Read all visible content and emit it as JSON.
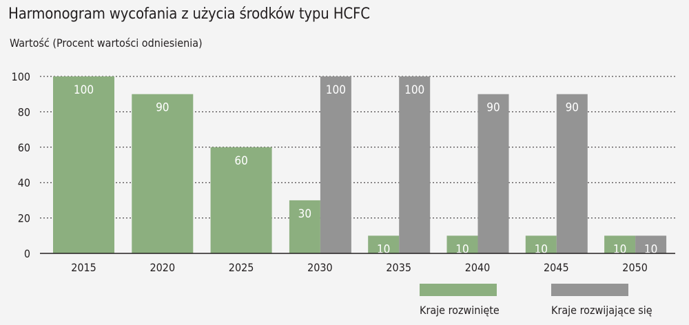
{
  "title": "Harmonogram wycofania z użycia środków typu HCFC",
  "subtitle": "Wartość (Procent wartości odniesienia)",
  "colors": {
    "developed": "#8caf7f",
    "developing": "#949494"
  },
  "chart_data": {
    "type": "bar",
    "categories": [
      "2015",
      "2020",
      "2025",
      "2030",
      "2035",
      "2040",
      "2045",
      "2050"
    ],
    "series": [
      {
        "name": "Kraje rozwinięte",
        "values": [
          100,
          90,
          60,
          30,
          10,
          10,
          10,
          10
        ],
        "color": "#8caf7f"
      },
      {
        "name": "Kraje rozwijające się",
        "values": [
          null,
          null,
          null,
          100,
          100,
          90,
          90,
          10
        ],
        "color": "#949494"
      }
    ],
    "yticks": [
      0,
      20,
      40,
      60,
      80,
      100
    ],
    "ylim": [
      0,
      100
    ],
    "grid": true,
    "legend_position": "bottom-right"
  },
  "legend": [
    {
      "label": "Kraje rozwinięte",
      "color": "#8caf7f"
    },
    {
      "label": "Kraje rozwijające się",
      "color": "#949494"
    }
  ]
}
